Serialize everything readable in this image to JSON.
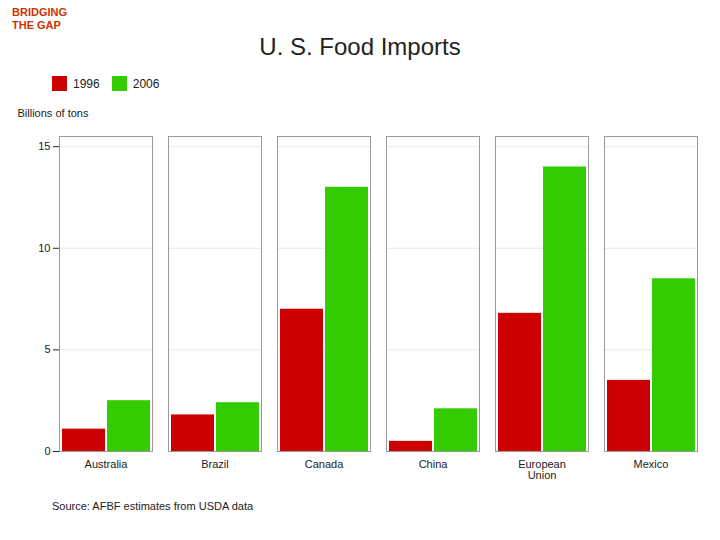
{
  "chart_data": {
    "type": "bar",
    "title": "U. S. Food Imports",
    "y_label": "Billions of tons",
    "caption": "Source:  AFBF estimates from USDA data",
    "annotations": [
      "BRIDGING\nTHE GAP"
    ],
    "categories": [
      "Australia",
      "Brazil",
      "Canada",
      "China",
      "European\nUnion",
      "Mexico"
    ],
    "series": [
      {
        "name": "1996",
        "color": "#cc0000",
        "values": [
          1.1,
          1.8,
          7.0,
          0.5,
          6.8,
          3.5
        ]
      },
      {
        "name": "2006",
        "color": "#33cc00",
        "values": [
          2.5,
          2.4,
          13.0,
          2.1,
          14.0,
          8.5
        ]
      }
    ],
    "ylim": [
      0,
      15.5
    ],
    "yticks": [
      0,
      5,
      10,
      15
    ],
    "grid": true,
    "legend": "upper left"
  }
}
